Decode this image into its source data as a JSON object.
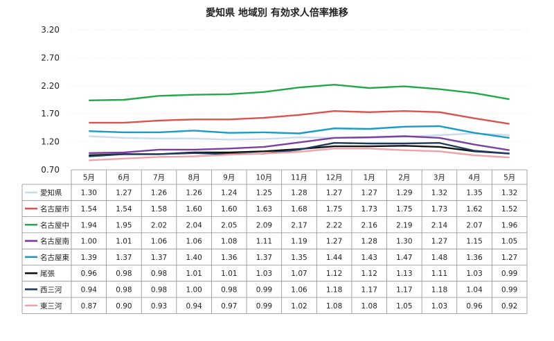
{
  "chart_data": {
    "type": "line",
    "title": "愛知県 地域別 有効求人倍率推移",
    "categories": [
      "5月",
      "6月",
      "7月",
      "8月",
      "9月",
      "10月",
      "11月",
      "12月",
      "1月",
      "2月",
      "3月",
      "4月",
      "5月"
    ],
    "ylim": [
      0.7,
      3.2
    ],
    "yticks": [
      "3.20",
      "2.70",
      "2.20",
      "1.70",
      "1.20",
      "0.70"
    ],
    "ytick_values": [
      3.2,
      2.7,
      2.2,
      1.7,
      1.2,
      0.7
    ],
    "grid": true,
    "legend": "data-table-below",
    "series": [
      {
        "name": "愛知県",
        "color": "#c9dcef",
        "values": [
          1.3,
          1.27,
          1.26,
          1.26,
          1.24,
          1.25,
          1.28,
          1.27,
          1.27,
          1.29,
          1.32,
          1.35,
          1.32
        ]
      },
      {
        "name": "名古屋市",
        "color": "#d9534f",
        "values": [
          1.54,
          1.54,
          1.58,
          1.6,
          1.6,
          1.63,
          1.68,
          1.75,
          1.73,
          1.75,
          1.73,
          1.62,
          1.52
        ]
      },
      {
        "name": "名古屋中",
        "color": "#22a84a",
        "values": [
          1.94,
          1.95,
          2.02,
          2.04,
          2.05,
          2.09,
          2.17,
          2.22,
          2.16,
          2.19,
          2.14,
          2.07,
          1.96
        ]
      },
      {
        "name": "名古屋南",
        "color": "#7b3fa0",
        "values": [
          1.0,
          1.01,
          1.06,
          1.06,
          1.08,
          1.11,
          1.19,
          1.27,
          1.28,
          1.3,
          1.27,
          1.15,
          1.05
        ]
      },
      {
        "name": "名古屋東",
        "color": "#1a9bc4",
        "values": [
          1.39,
          1.37,
          1.37,
          1.4,
          1.36,
          1.37,
          1.35,
          1.44,
          1.43,
          1.47,
          1.48,
          1.36,
          1.27
        ]
      },
      {
        "name": "尾張",
        "color": "#111111",
        "values": [
          0.96,
          0.98,
          0.98,
          1.01,
          1.01,
          1.03,
          1.07,
          1.12,
          1.12,
          1.13,
          1.11,
          1.03,
          0.99
        ]
      },
      {
        "name": "西三河",
        "color": "#1f3b5c",
        "values": [
          0.94,
          0.98,
          0.98,
          1.0,
          0.98,
          0.99,
          1.06,
          1.18,
          1.17,
          1.17,
          1.18,
          1.04,
          0.99
        ]
      },
      {
        "name": "東三河",
        "color": "#f0a0a8",
        "values": [
          0.87,
          0.9,
          0.93,
          0.94,
          0.97,
          0.99,
          1.02,
          1.08,
          1.08,
          1.05,
          1.03,
          0.96,
          0.92
        ]
      }
    ]
  }
}
